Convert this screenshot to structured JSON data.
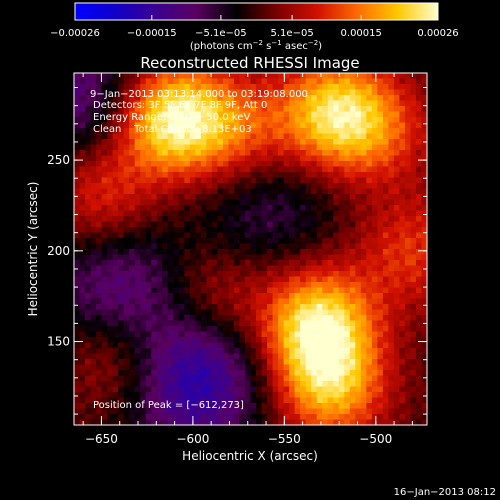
{
  "chart_data": {
    "type": "heatmap",
    "title": "Reconstructed RHESSI Image",
    "xlabel": "Heliocentric X (arcsec)",
    "ylabel": "Heliocentric Y (arcsec)",
    "xlim": [
      -665,
      -472
    ],
    "ylim": [
      104,
      298
    ],
    "x_ticks": [
      {
        "value": -650,
        "label": "−650"
      },
      {
        "value": -600,
        "label": "−600"
      },
      {
        "value": -550,
        "label": "−550"
      },
      {
        "value": -500,
        "label": "−500"
      }
    ],
    "y_ticks": [
      {
        "value": 150,
        "label": "150"
      },
      {
        "value": 200,
        "label": "200"
      },
      {
        "value": 250,
        "label": "250"
      }
    ],
    "colorbar": {
      "range": [
        -0.00026,
        0.00026
      ],
      "ticks": [
        {
          "value": -0.00026,
          "label": "−0.00026"
        },
        {
          "value": -0.00015,
          "label": "−0.00015"
        },
        {
          "value": -5.1e-05,
          "label": "−5.1e−05"
        },
        {
          "value": 5.1e-05,
          "label": "5.1e−05"
        },
        {
          "value": 0.00015,
          "label": "0.00015"
        },
        {
          "value": 0.00026,
          "label": "0.00026"
        }
      ],
      "units_base": "(photons cm",
      "units_e1": "−2",
      "units_mid1": " s",
      "units_e2": "−1",
      "units_mid2": " asec",
      "units_e3": "−2",
      "units_end": ")"
    },
    "annotations": {
      "line1": "9−Jan−2013 03:13:14.000 to 03:19:08.000",
      "line2": "Detectors: 3F 5F 6F 7F 8F 9F, Att 0",
      "line3": "Energy Range: 25.0 − 50.0 keV",
      "line4": "Clean    Total Counts: 8.13E+03",
      "peak": "Position of Peak = [−612,273]"
    },
    "hotspots": [
      {
        "x": -612,
        "y": 273,
        "amp": 1.0
      },
      {
        "x": -522,
        "y": 275,
        "amp": 0.85
      },
      {
        "x": -532,
        "y": 160,
        "amp": 0.9
      },
      {
        "x": -525,
        "y": 125,
        "amp": 0.7
      },
      {
        "x": -575,
        "y": 265,
        "amp": 0.45
      },
      {
        "x": -650,
        "y": 230,
        "amp": 0.45
      },
      {
        "x": -640,
        "y": 140,
        "amp": 0.4
      },
      {
        "x": -590,
        "y": 175,
        "amp": 0.35
      },
      {
        "x": -480,
        "y": 200,
        "amp": 0.4
      },
      {
        "x": -495,
        "y": 265,
        "amp": 0.3
      }
    ],
    "coldspots": [
      {
        "x": -600,
        "y": 130,
        "amp": 0.7
      },
      {
        "x": -640,
        "y": 180,
        "amp": 0.45
      },
      {
        "x": -660,
        "y": 285,
        "amp": 0.45
      },
      {
        "x": -560,
        "y": 225,
        "amp": 0.3
      }
    ]
  },
  "footer": {
    "timestamp": "16−Jan−2013 08:12"
  },
  "colors": {
    "bar_stops": [
      "#0000ff",
      "#1000c8",
      "#3a0090",
      "#5a0060",
      "#000000",
      "#7a0000",
      "#d01000",
      "#ff6a00",
      "#ffc800",
      "#ffffd0"
    ]
  }
}
